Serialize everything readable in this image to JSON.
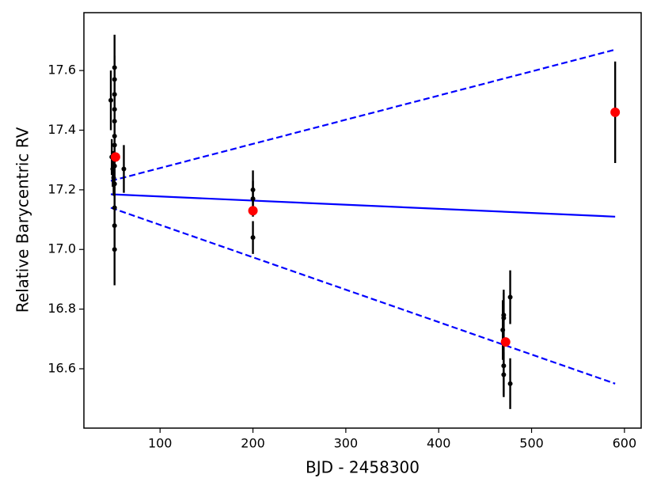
{
  "chart_data": {
    "type": "errorbar",
    "xlabel": "BJD - 2458300",
    "ylabel": "Relative Barycentric RV",
    "xlim": [
      18,
      618
    ],
    "ylim": [
      16.401,
      17.794
    ],
    "xticks": [
      100,
      200,
      300,
      400,
      500,
      600
    ],
    "yticks": [
      16.6,
      16.8,
      {
        "value": 17,
        "label": "17.0"
      },
      17.2,
      17.4,
      17.6
    ],
    "points": {
      "color": "#000000",
      "x": [
        47,
        48,
        49,
        50,
        51,
        51,
        51,
        51,
        51,
        51,
        51,
        51,
        51,
        51,
        51,
        51,
        51,
        61,
        200,
        200,
        200,
        469,
        470,
        470,
        470,
        470,
        477,
        477,
        590
      ],
      "y": [
        17.5,
        17.31,
        17.27,
        17.24,
        17.61,
        17.57,
        17.52,
        17.47,
        17.43,
        17.38,
        17.35,
        17.3,
        17.28,
        17.22,
        17.14,
        17.08,
        17.0,
        17.27,
        17.2,
        17.17,
        17.04,
        16.73,
        16.78,
        16.77,
        16.61,
        16.58,
        16.84,
        16.55,
        17.46
      ],
      "yerr": [
        0.1,
        0.06,
        0.06,
        0.06,
        0.11,
        0.08,
        0.08,
        0.08,
        0.08,
        0.08,
        0.08,
        0.08,
        0.08,
        0.08,
        0.08,
        0.08,
        0.12,
        0.08,
        0.065,
        0.06,
        0.055,
        0.1,
        0.085,
        0.085,
        0.1,
        0.075,
        0.09,
        0.085,
        0.17
      ]
    },
    "binned": {
      "color": "#ff0000",
      "x": [
        52,
        200,
        472,
        590
      ],
      "y": [
        17.31,
        17.13,
        16.69,
        17.46
      ]
    },
    "lines": [
      {
        "color": "#0000ff",
        "style": "solid",
        "x": [
          47,
          590
        ],
        "y": [
          17.185,
          17.11
        ]
      },
      {
        "color": "#0000ff",
        "style": "dashed",
        "x": [
          47,
          590
        ],
        "y": [
          17.23,
          17.67
        ]
      },
      {
        "color": "#0000ff",
        "style": "dashed",
        "x": [
          47,
          590
        ],
        "y": [
          17.14,
          16.55
        ]
      }
    ]
  }
}
